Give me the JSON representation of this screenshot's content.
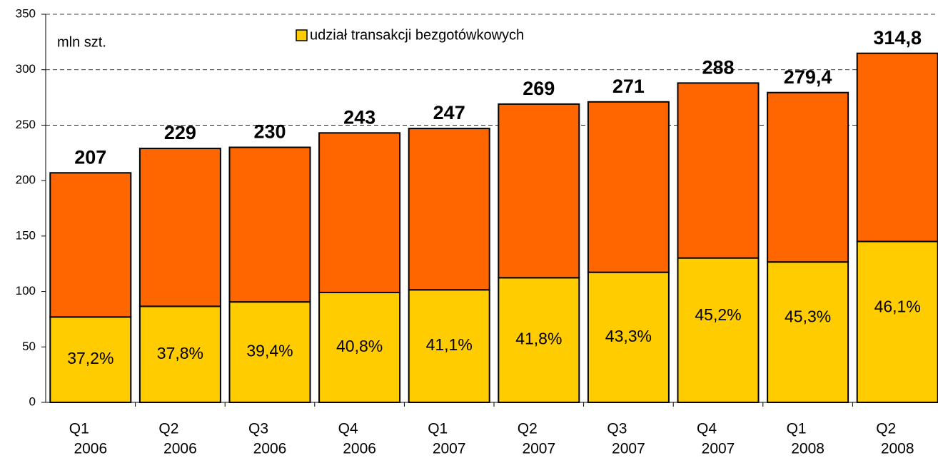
{
  "chart_data": {
    "type": "stacked_bar",
    "annotation": "mln szt.",
    "categories": [
      [
        "Q1",
        "2006"
      ],
      [
        "Q2",
        "2006"
      ],
      [
        "Q3",
        "2006"
      ],
      [
        "Q4",
        "2006"
      ],
      [
        "Q1",
        "2007"
      ],
      [
        "Q2",
        "2007"
      ],
      [
        "Q3",
        "2007"
      ],
      [
        "Q4",
        "2007"
      ],
      [
        "Q1",
        "2008"
      ],
      [
        "Q2",
        "2008"
      ]
    ],
    "series": [
      {
        "name": "udział transakcji bezgotówkowych",
        "color": "#ffcc00",
        "values": [
          77.0,
          86.6,
          90.6,
          99.1,
          101.5,
          112.4,
          117.3,
          130.2,
          126.6,
          145.1
        ],
        "value_labels": [
          "37,2%",
          "37,8%",
          "39,4%",
          "40,8%",
          "41,1%",
          "41,8%",
          "43,3%",
          "45,2%",
          "45,3%",
          "46,1%"
        ]
      },
      {
        "color": "#ff6600",
        "values": [
          130.0,
          142.4,
          139.4,
          143.9,
          145.5,
          156.6,
          153.7,
          157.8,
          152.8,
          169.7
        ]
      }
    ],
    "totals": [
      207,
      229,
      230,
      243,
      247,
      269,
      271,
      288,
      279.4,
      314.8
    ],
    "total_labels": [
      "207",
      "229",
      "230",
      "243",
      "247",
      "269",
      "271",
      "288",
      "279,4",
      "314,8"
    ],
    "ylim": [
      0,
      350
    ],
    "yticks": [
      0,
      50,
      100,
      150,
      200,
      250,
      300,
      350
    ],
    "grid_from": 250,
    "legend": "top"
  }
}
